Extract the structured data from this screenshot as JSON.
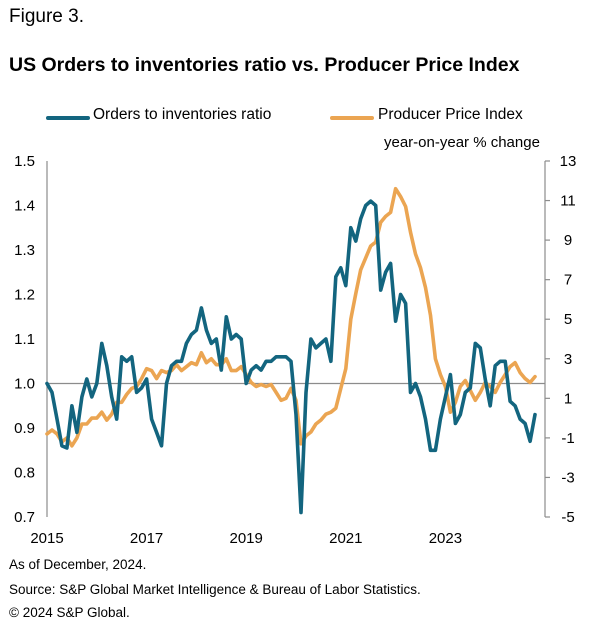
{
  "figure_label": "Figure 3.",
  "footer": {
    "note": "As of December, 2024.",
    "source": "Source: S&P Global Market Intelligence & Bureau of Labor Statistics.",
    "copyright": "© 2024 S&P Global."
  },
  "chart_data": {
    "type": "line",
    "title": "US Orders to inventories ratio vs. Producer Price Index",
    "legend_position": "top",
    "grid": false,
    "x_tick_labels": [
      "2015",
      "2017",
      "2019",
      "2021",
      "2023"
    ],
    "x_range": [
      2015.0,
      2025.0
    ],
    "left_axis": {
      "range": [
        0.7,
        1.5
      ],
      "ticks": [
        "0.7",
        "0.8",
        "0.9",
        "1.0",
        "1.1",
        "1.2",
        "1.3",
        "1.4",
        "1.5"
      ],
      "reference_line": 1.0
    },
    "right_axis": {
      "label": "year-on-year % change",
      "range": [
        -5,
        13
      ],
      "ticks": [
        "-5",
        "-3",
        "-1",
        "1",
        "3",
        "5",
        "7",
        "9",
        "11",
        "13"
      ]
    },
    "series": [
      {
        "name": "Orders to inventories ratio",
        "axis": "left",
        "color": "#13657f",
        "x": [
          2015.0,
          2015.1,
          2015.2,
          2015.3,
          2015.4,
          2015.5,
          2015.6,
          2015.7,
          2015.8,
          2015.9,
          2016.0,
          2016.1,
          2016.2,
          2016.3,
          2016.4,
          2016.5,
          2016.6,
          2016.7,
          2016.8,
          2016.9,
          2017.0,
          2017.1,
          2017.2,
          2017.3,
          2017.4,
          2017.5,
          2017.6,
          2017.7,
          2017.8,
          2017.9,
          2018.0,
          2018.1,
          2018.2,
          2018.3,
          2018.4,
          2018.5,
          2018.6,
          2018.7,
          2018.8,
          2018.9,
          2019.0,
          2019.1,
          2019.2,
          2019.3,
          2019.4,
          2019.5,
          2019.6,
          2019.7,
          2019.8,
          2019.9,
          2020.0,
          2020.1,
          2020.2,
          2020.3,
          2020.4,
          2020.5,
          2020.6,
          2020.7,
          2020.8,
          2020.9,
          2021.0,
          2021.1,
          2021.2,
          2021.3,
          2021.4,
          2021.5,
          2021.6,
          2021.7,
          2021.8,
          2021.9,
          2022.0,
          2022.1,
          2022.2,
          2022.3,
          2022.4,
          2022.5,
          2022.6,
          2022.7,
          2022.8,
          2022.9,
          2023.0,
          2023.1,
          2023.2,
          2023.3,
          2023.4,
          2023.5,
          2023.6,
          2023.7,
          2023.8,
          2023.9,
          2024.0,
          2024.1,
          2024.2,
          2024.3,
          2024.4,
          2024.5,
          2024.6,
          2024.7,
          2024.8
        ],
        "values": [
          1.0,
          0.98,
          0.92,
          0.86,
          0.855,
          0.95,
          0.89,
          0.97,
          1.01,
          0.97,
          1.0,
          1.09,
          1.04,
          0.97,
          0.92,
          1.06,
          1.05,
          1.06,
          0.98,
          0.99,
          1.01,
          0.92,
          0.89,
          0.86,
          1.0,
          1.04,
          1.05,
          1.05,
          1.09,
          1.11,
          1.12,
          1.17,
          1.12,
          1.09,
          1.1,
          1.03,
          1.15,
          1.1,
          1.11,
          1.1,
          1.0,
          1.03,
          1.04,
          1.03,
          1.05,
          1.05,
          1.06,
          1.06,
          1.06,
          1.05,
          0.93,
          0.71,
          0.98,
          1.1,
          1.08,
          1.09,
          1.1,
          1.05,
          1.24,
          1.26,
          1.22,
          1.35,
          1.32,
          1.37,
          1.4,
          1.41,
          1.4,
          1.21,
          1.25,
          1.27,
          1.14,
          1.2,
          1.18,
          0.98,
          1.0,
          0.97,
          0.92,
          0.85,
          0.85,
          0.92,
          0.97,
          1.02,
          0.91,
          0.93,
          0.98,
          0.99,
          1.09,
          1.08,
          1.01,
          0.95,
          1.04,
          1.05,
          1.05,
          0.96,
          0.95,
          0.92,
          0.91,
          0.87,
          0.93
        ]
      },
      {
        "name": "Producer Price Index",
        "axis": "right",
        "color": "#eba552",
        "x": [
          2015.0,
          2015.1,
          2015.2,
          2015.3,
          2015.4,
          2015.5,
          2015.6,
          2015.7,
          2015.8,
          2015.9,
          2016.0,
          2016.1,
          2016.2,
          2016.3,
          2016.4,
          2016.5,
          2016.6,
          2016.7,
          2016.8,
          2016.9,
          2017.0,
          2017.1,
          2017.2,
          2017.3,
          2017.4,
          2017.5,
          2017.6,
          2017.7,
          2017.8,
          2017.9,
          2018.0,
          2018.1,
          2018.2,
          2018.3,
          2018.4,
          2018.5,
          2018.6,
          2018.7,
          2018.8,
          2018.9,
          2019.0,
          2019.1,
          2019.2,
          2019.3,
          2019.4,
          2019.5,
          2019.6,
          2019.7,
          2019.8,
          2019.9,
          2020.0,
          2020.1,
          2020.2,
          2020.3,
          2020.4,
          2020.5,
          2020.6,
          2020.7,
          2020.8,
          2020.9,
          2021.0,
          2021.1,
          2021.2,
          2021.3,
          2021.4,
          2021.5,
          2021.6,
          2021.7,
          2021.8,
          2021.9,
          2022.0,
          2022.1,
          2022.2,
          2022.3,
          2022.4,
          2022.5,
          2022.6,
          2022.7,
          2022.8,
          2022.9,
          2023.0,
          2023.1,
          2023.2,
          2023.3,
          2023.4,
          2023.5,
          2023.6,
          2023.7,
          2023.8,
          2023.9,
          2024.0,
          2024.1,
          2024.2,
          2024.3,
          2024.4,
          2024.5,
          2024.6,
          2024.7,
          2024.8
        ],
        "values": [
          -0.8,
          -0.6,
          -0.8,
          -1.2,
          -1.0,
          -1.4,
          -1.0,
          -0.3,
          -0.3,
          0.0,
          0.0,
          0.3,
          -0.1,
          0.2,
          0.8,
          0.8,
          1.2,
          1.5,
          1.6,
          2.0,
          2.5,
          2.4,
          2.0,
          2.4,
          2.3,
          2.4,
          2.7,
          2.4,
          2.6,
          2.8,
          2.7,
          3.3,
          2.8,
          3.0,
          2.7,
          2.7,
          3.0,
          2.4,
          2.4,
          2.6,
          2.2,
          1.8,
          1.6,
          1.7,
          1.6,
          1.7,
          1.3,
          0.9,
          1.0,
          1.5,
          0.9,
          -1.3,
          -0.9,
          -0.7,
          -0.3,
          -0.1,
          0.2,
          0.3,
          0.5,
          1.5,
          2.5,
          5.0,
          6.3,
          7.5,
          8.1,
          8.7,
          8.9,
          9.9,
          10.2,
          10.4,
          11.6,
          11.2,
          10.7,
          9.4,
          8.3,
          7.6,
          6.6,
          5.2,
          3.0,
          2.2,
          1.6,
          0.3,
          0.8,
          1.6,
          1.9,
          1.4,
          0.9,
          1.3,
          1.8,
          1.6,
          1.3,
          1.8,
          2.2,
          2.6,
          2.8,
          2.3,
          2.0,
          1.8,
          2.1
        ]
      }
    ]
  }
}
